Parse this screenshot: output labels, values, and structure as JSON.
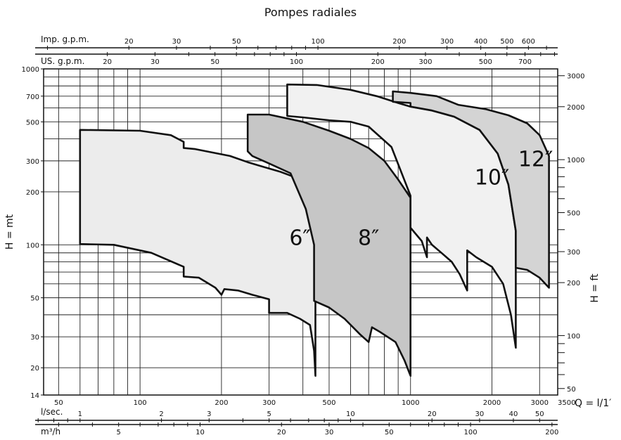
{
  "chart_data": {
    "type": "area",
    "title": "Pompes radiales",
    "xscale": "log",
    "yscale": "log",
    "xlim": [
      44,
      3500
    ],
    "ylim": [
      14,
      1000
    ],
    "x_unit_label": "Q = l/1′",
    "y_label_left": "H = mt",
    "y_label_right": "H = ft",
    "grid": true,
    "y_ticks": [
      14,
      20,
      30,
      50,
      100,
      200,
      300,
      500,
      700,
      1000
    ],
    "x_ticks": [
      50,
      100,
      200,
      300,
      500,
      1000,
      2000,
      3000,
      3500
    ],
    "ft_axis": {
      "label": "H = ft",
      "ticks": [
        50,
        100,
        200,
        300,
        500,
        1000,
        2000,
        3000
      ]
    },
    "imp_gpm_axis": {
      "label": "Imp. g.p.m.",
      "ticks": [
        20,
        30,
        50,
        100,
        200,
        300,
        400,
        500,
        600
      ]
    },
    "us_gpm_axis": {
      "label": "US. g.p.m.",
      "ticks": [
        20,
        30,
        50,
        100,
        200,
        300,
        500,
        700
      ]
    },
    "lsec_axis": {
      "label": "l/sec.",
      "ticks": [
        1,
        2,
        3,
        5,
        10,
        20,
        30,
        40,
        50
      ]
    },
    "m3h_axis": {
      "label": "m³/h",
      "ticks": [
        5,
        10,
        20,
        30,
        50,
        100,
        200
      ]
    },
    "series": [
      {
        "name": "6″",
        "fill": "#ececec",
        "outline": [
          [
            60,
            450
          ],
          [
            100,
            445
          ],
          [
            130,
            420
          ],
          [
            145,
            385
          ],
          [
            145,
            355
          ],
          [
            160,
            350
          ],
          [
            215,
            320
          ],
          [
            250,
            295
          ],
          [
            280,
            280
          ],
          [
            330,
            260
          ],
          [
            380,
            240
          ],
          [
            420,
            195
          ],
          [
            445,
            130
          ],
          [
            445,
            18
          ],
          [
            440,
            25
          ],
          [
            425,
            35
          ],
          [
            390,
            38
          ],
          [
            350,
            41
          ],
          [
            300,
            41
          ],
          [
            300,
            49
          ],
          [
            260,
            52
          ],
          [
            230,
            55
          ],
          [
            205,
            56
          ],
          [
            200,
            52
          ],
          [
            190,
            57
          ],
          [
            165,
            65
          ],
          [
            145,
            66
          ],
          [
            145,
            75
          ],
          [
            110,
            90
          ],
          [
            80,
            100
          ],
          [
            60,
            101
          ]
        ]
      },
      {
        "name": "8″",
        "fill": "#c6c6c6",
        "outline": [
          [
            250,
            550
          ],
          [
            300,
            550
          ],
          [
            400,
            500
          ],
          [
            500,
            445
          ],
          [
            600,
            400
          ],
          [
            700,
            355
          ],
          [
            800,
            300
          ],
          [
            900,
            235
          ],
          [
            1000,
            185
          ],
          [
            1000,
            18
          ],
          [
            950,
            22
          ],
          [
            880,
            28
          ],
          [
            770,
            32
          ],
          [
            720,
            34
          ],
          [
            700,
            28
          ],
          [
            650,
            31
          ],
          [
            570,
            38
          ],
          [
            500,
            44
          ],
          [
            440,
            48
          ],
          [
            440,
            100
          ],
          [
            410,
            160
          ],
          [
            360,
            255
          ],
          [
            300,
            290
          ],
          [
            260,
            320
          ],
          [
            250,
            340
          ]
        ]
      },
      {
        "name": "10″",
        "fill": "#f1f1f1",
        "outline": [
          [
            350,
            815
          ],
          [
            450,
            810
          ],
          [
            600,
            760
          ],
          [
            750,
            700
          ],
          [
            900,
            640
          ],
          [
            1000,
            610
          ],
          [
            1200,
            580
          ],
          [
            1450,
            535
          ],
          [
            1800,
            450
          ],
          [
            2100,
            330
          ],
          [
            2300,
            220
          ],
          [
            2450,
            120
          ],
          [
            2450,
            26
          ],
          [
            2350,
            40
          ],
          [
            2200,
            60
          ],
          [
            2000,
            75
          ],
          [
            1750,
            85
          ],
          [
            1620,
            93
          ],
          [
            1620,
            55
          ],
          [
            1520,
            68
          ],
          [
            1420,
            80
          ],
          [
            1300,
            90
          ],
          [
            1200,
            100
          ],
          [
            1150,
            110
          ],
          [
            1150,
            85
          ],
          [
            1100,
            105
          ],
          [
            1000,
            125
          ],
          [
            1000,
            190
          ],
          [
            850,
            360
          ],
          [
            700,
            470
          ],
          [
            600,
            500
          ],
          [
            500,
            510
          ],
          [
            400,
            530
          ],
          [
            350,
            540
          ]
        ]
      },
      {
        "name": "12″",
        "fill": "#d4d4d4",
        "outline": [
          [
            860,
            745
          ],
          [
            1000,
            730
          ],
          [
            1250,
            700
          ],
          [
            1500,
            625
          ],
          [
            1900,
            590
          ],
          [
            2300,
            545
          ],
          [
            2700,
            490
          ],
          [
            3000,
            420
          ],
          [
            3250,
            320
          ],
          [
            3250,
            57
          ],
          [
            3000,
            65
          ],
          [
            2700,
            72
          ],
          [
            2450,
            74
          ],
          [
            2450,
            120
          ],
          [
            2300,
            220
          ],
          [
            2100,
            330
          ],
          [
            1800,
            450
          ],
          [
            1450,
            535
          ],
          [
            1200,
            580
          ],
          [
            1000,
            610
          ],
          [
            1000,
            640
          ],
          [
            860,
            650
          ]
        ]
      }
    ],
    "annotations": [
      "6″",
      "8″",
      "10″",
      "12″"
    ]
  }
}
